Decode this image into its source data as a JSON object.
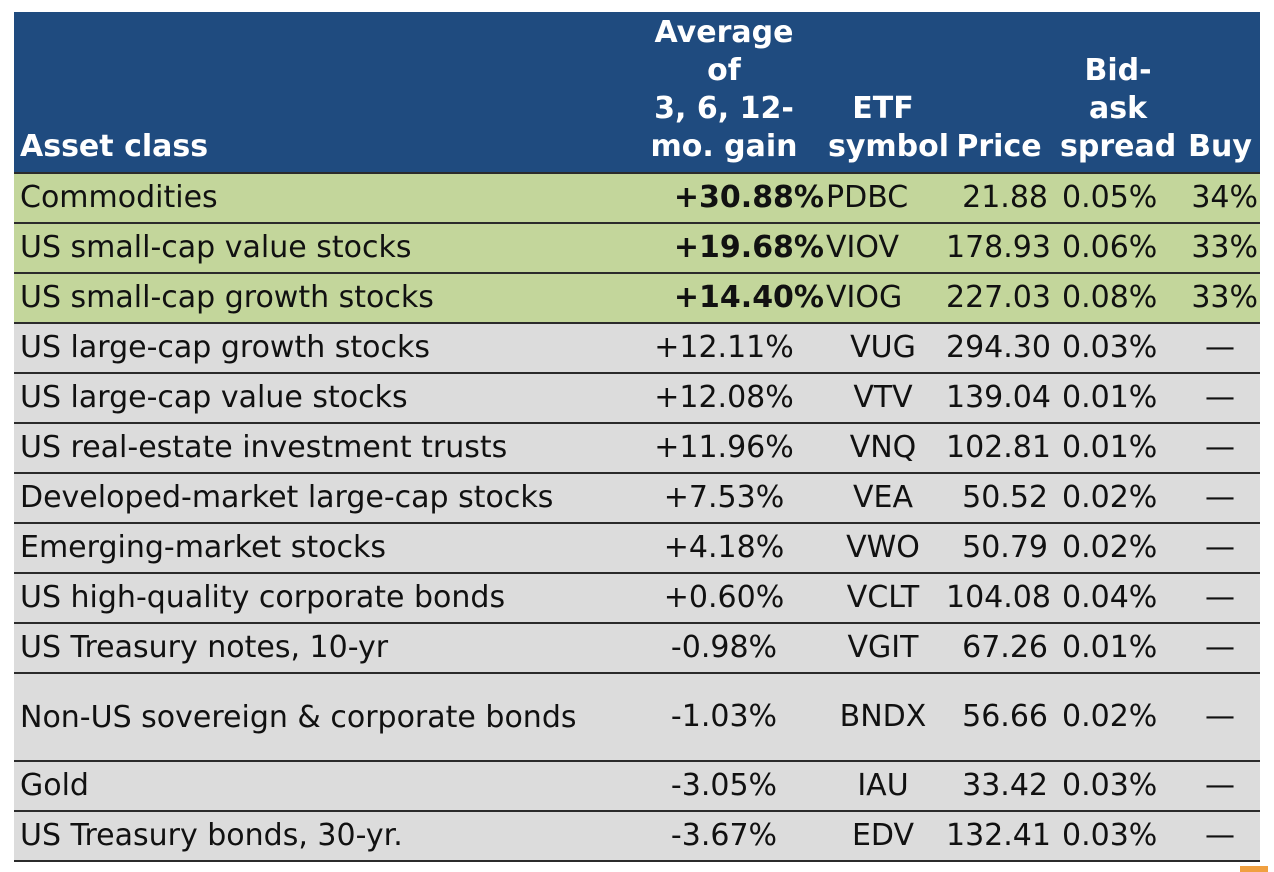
{
  "headers": {
    "asset_class": "Asset class",
    "gain": [
      "Average",
      "of",
      "3, 6, 12-",
      "mo. gain"
    ],
    "etf": [
      "ETF",
      "symbol"
    ],
    "price": "Price",
    "spread": [
      "Bid-",
      "ask",
      "spread"
    ],
    "buy": "Buy"
  },
  "rows": [
    {
      "asset": "Commodities",
      "gain": "+30.88%",
      "symbol": "PDBC",
      "price": "21.88",
      "spread": "0.05%",
      "buy": "34%"
    },
    {
      "asset": "US small-cap value stocks",
      "gain": "+19.68%",
      "symbol": "VIOV",
      "price": "178.93",
      "spread": "0.06%",
      "buy": "33%"
    },
    {
      "asset": "US small-cap growth stocks",
      "gain": "+14.40%",
      "symbol": "VIOG",
      "price": "227.03",
      "spread": "0.08%",
      "buy": "33%"
    },
    {
      "asset": "US large-cap growth stocks",
      "gain": "+12.11%",
      "symbol": "VUG",
      "price": "294.30",
      "spread": "0.03%",
      "buy": "—"
    },
    {
      "asset": "US large-cap value stocks",
      "gain": "+12.08%",
      "symbol": "VTV",
      "price": "139.04",
      "spread": "0.01%",
      "buy": "—"
    },
    {
      "asset": "US real-estate investment trusts",
      "gain": "+11.96%",
      "symbol": "VNQ",
      "price": "102.81",
      "spread": "0.01%",
      "buy": "—"
    },
    {
      "asset": "Developed-market large-cap stocks",
      "gain": "+7.53%",
      "symbol": "VEA",
      "price": "50.52",
      "spread": "0.02%",
      "buy": "—"
    },
    {
      "asset": "Emerging-market stocks",
      "gain": "+4.18%",
      "symbol": "VWO",
      "price": "50.79",
      "spread": "0.02%",
      "buy": "—"
    },
    {
      "asset": "US high-quality corporate bonds",
      "gain": "+0.60%",
      "symbol": "VCLT",
      "price": "104.08",
      "spread": "0.04%",
      "buy": "—"
    },
    {
      "asset": "US Treasury notes, 10-yr",
      "gain": "-0.98%",
      "symbol": "VGIT",
      "price": "67.26",
      "spread": "0.01%",
      "buy": "—"
    },
    {
      "asset": "Non-US sovereign & corporate bonds",
      "gain": "-1.03%",
      "symbol": "BNDX",
      "price": "56.66",
      "spread": "0.02%",
      "buy": "—"
    },
    {
      "asset": "Gold",
      "gain": "-3.05%",
      "symbol": "IAU",
      "price": "33.42",
      "spread": "0.03%",
      "buy": "—"
    },
    {
      "asset": "US Treasury bonds, 30-yr.",
      "gain": "-3.67%",
      "symbol": "EDV",
      "price": "132.41",
      "spread": "0.03%",
      "buy": "—"
    }
  ],
  "colors": {
    "header_bg": "#1f4b7f",
    "highlight_row_bg": "#c3d69b",
    "normal_row_bg": "#dcdcdc"
  }
}
